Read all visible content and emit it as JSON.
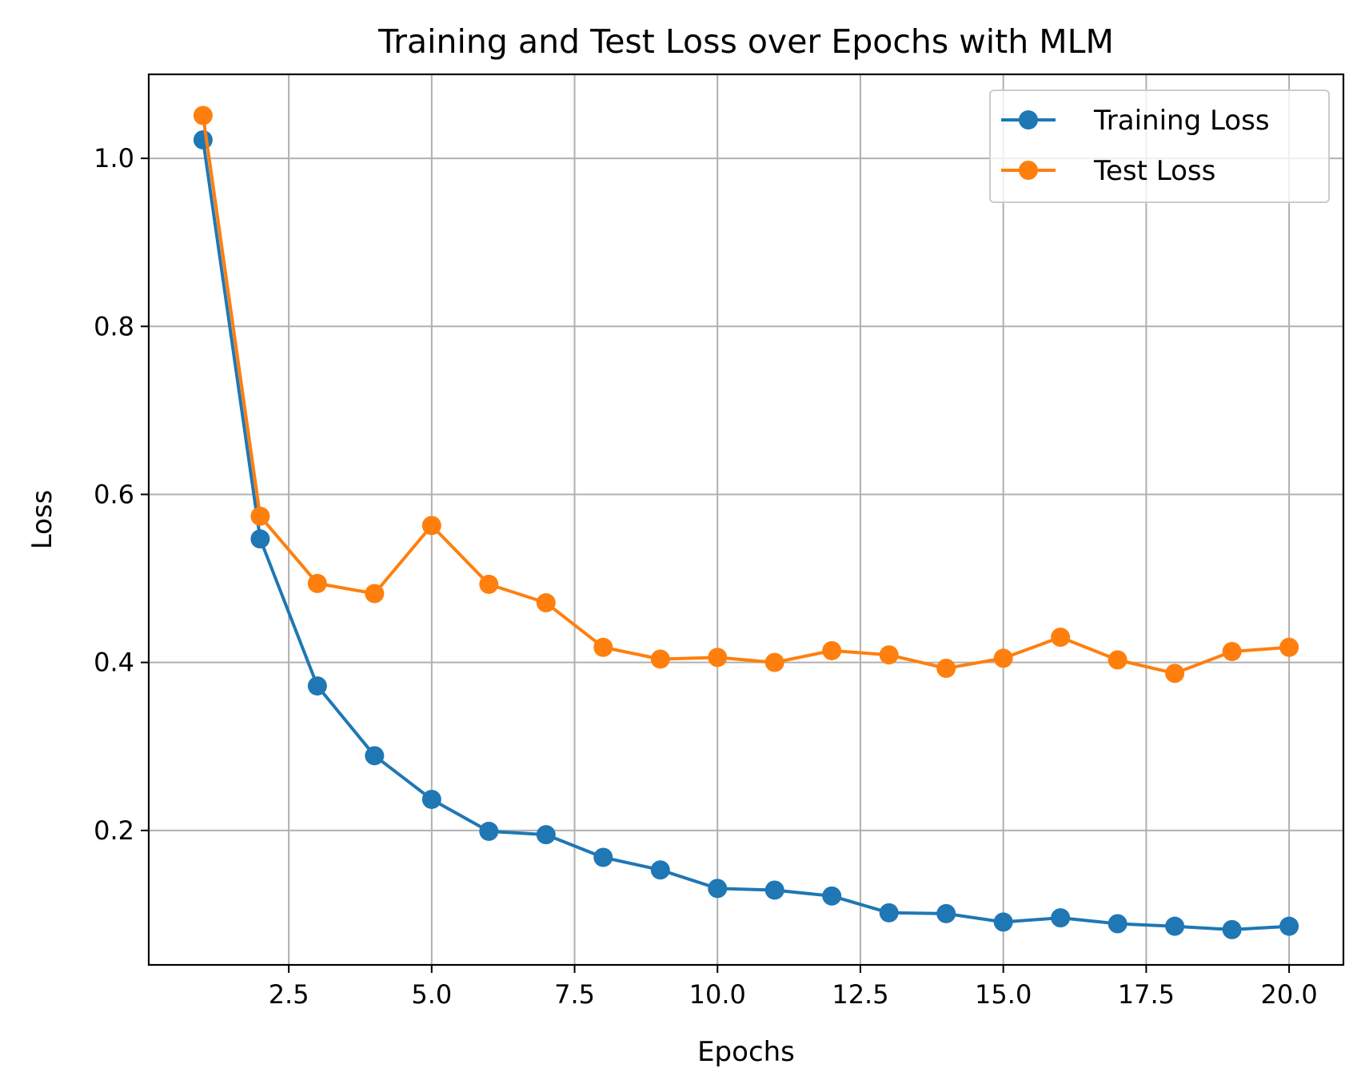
{
  "chart_data": {
    "type": "line",
    "title": "Training and Test Loss over Epochs with MLM",
    "xlabel": "Epochs",
    "ylabel": "Loss",
    "xlim": [
      0.05,
      20.95
    ],
    "ylim": [
      0.04,
      1.1
    ],
    "xticks": [
      2.5,
      5.0,
      7.5,
      10.0,
      12.5,
      15.0,
      17.5,
      20.0
    ],
    "xtick_labels": [
      "2.5",
      "5.0",
      "7.5",
      "10.0",
      "12.5",
      "15.0",
      "17.5",
      "20.0"
    ],
    "yticks": [
      0.2,
      0.4,
      0.6,
      0.8,
      1.0
    ],
    "ytick_labels": [
      "0.2",
      "0.4",
      "0.6",
      "0.8",
      "1.0"
    ],
    "grid": true,
    "legend_position": "top-right",
    "x": [
      1,
      2,
      3,
      4,
      5,
      6,
      7,
      8,
      9,
      10,
      11,
      12,
      13,
      14,
      15,
      16,
      17,
      18,
      19,
      20
    ],
    "series": [
      {
        "name": "Training Loss",
        "color": "#1f77b4",
        "values": [
          1.022,
          0.547,
          0.372,
          0.289,
          0.237,
          0.199,
          0.195,
          0.168,
          0.153,
          0.131,
          0.129,
          0.122,
          0.102,
          0.101,
          0.091,
          0.096,
          0.089,
          0.086,
          0.082,
          0.086
        ]
      },
      {
        "name": "Test Loss",
        "color": "#ff7f0e",
        "values": [
          1.051,
          0.574,
          0.494,
          0.482,
          0.563,
          0.493,
          0.471,
          0.418,
          0.404,
          0.406,
          0.4,
          0.414,
          0.409,
          0.393,
          0.405,
          0.43,
          0.403,
          0.387,
          0.413,
          0.418
        ]
      }
    ]
  }
}
